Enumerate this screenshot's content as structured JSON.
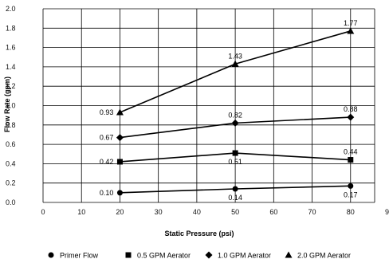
{
  "chart_data": {
    "type": "line",
    "title": "",
    "xlabel": "Static Pressure (psi)",
    "ylabel": "Flow Rate (gpm)",
    "xlim": [
      0,
      90
    ],
    "ylim": [
      0,
      2.0
    ],
    "x_ticks": [
      0,
      10,
      20,
      30,
      40,
      50,
      60,
      70,
      80,
      90
    ],
    "y_ticks": [
      0.0,
      0.2,
      0.4,
      0.6,
      0.8,
      1.0,
      1.2,
      1.4,
      1.6,
      1.8,
      2.0
    ],
    "grid": true,
    "legend": "bottom",
    "x": [
      20,
      50,
      80
    ],
    "series": [
      {
        "name": "Primer Flow",
        "marker": "circle",
        "values": [
          0.1,
          0.14,
          0.17
        ],
        "labels": [
          "0.10",
          "0.14",
          "0.17"
        ],
        "label_pos": [
          "left",
          "below",
          "below"
        ]
      },
      {
        "name": "0.5 GPM Aerator",
        "marker": "square",
        "values": [
          0.42,
          0.51,
          0.44
        ],
        "labels": [
          "0.42",
          "0.51",
          "0.44"
        ],
        "label_pos": [
          "left",
          "below",
          "above"
        ]
      },
      {
        "name": "1.0 GPM Aerator",
        "marker": "diamond",
        "values": [
          0.67,
          0.82,
          0.88
        ],
        "labels": [
          "0.67",
          "0.82",
          "0.88"
        ],
        "label_pos": [
          "left",
          "above",
          "above"
        ]
      },
      {
        "name": "2.0 GPM Aerator",
        "marker": "triangle",
        "values": [
          0.93,
          1.43,
          1.77
        ],
        "labels": [
          "0.93",
          "1.43",
          "1.77"
        ],
        "label_pos": [
          "left",
          "above",
          "above"
        ]
      }
    ],
    "colors": {
      "line": "#000000",
      "grid": "#000000"
    }
  }
}
